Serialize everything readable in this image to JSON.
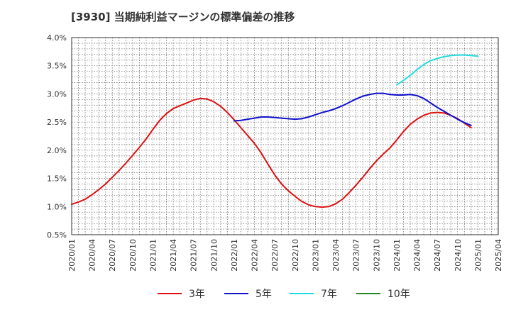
{
  "chart_data": {
    "type": "line",
    "title": "[3930]  当期純利益マージンの標準偏差の推移",
    "xlabel": "",
    "ylabel": "",
    "ylim": [
      0.5,
      4.0
    ],
    "y_ticks": [
      "0.5%",
      "1.0%",
      "1.5%",
      "2.0%",
      "2.5%",
      "3.0%",
      "3.5%",
      "4.0%"
    ],
    "x_ticks": [
      "2020/01",
      "2020/04",
      "2020/07",
      "2020/10",
      "2021/01",
      "2021/04",
      "2021/07",
      "2021/10",
      "2022/01",
      "2022/04",
      "2022/07",
      "2022/10",
      "2023/01",
      "2023/04",
      "2023/07",
      "2023/10",
      "2024/01",
      "2024/04",
      "2024/07",
      "2024/10",
      "2025/01",
      "2025/04"
    ],
    "grid": true,
    "legend_position": "bottom",
    "series": [
      {
        "name": "3年",
        "color": "#dd1111",
        "points": [
          [
            "2020/01",
            1.04
          ],
          [
            "2020/02",
            1.08
          ],
          [
            "2020/03",
            1.13
          ],
          [
            "2020/04",
            1.21
          ],
          [
            "2020/05",
            1.3
          ],
          [
            "2020/06",
            1.4
          ],
          [
            "2020/07",
            1.52
          ],
          [
            "2020/08",
            1.64
          ],
          [
            "2020/09",
            1.77
          ],
          [
            "2020/10",
            1.91
          ],
          [
            "2020/11",
            2.05
          ],
          [
            "2020/12",
            2.2
          ],
          [
            "2021/01",
            2.37
          ],
          [
            "2021/02",
            2.53
          ],
          [
            "2021/03",
            2.65
          ],
          [
            "2021/04",
            2.74
          ],
          [
            "2021/05",
            2.79
          ],
          [
            "2021/06",
            2.84
          ],
          [
            "2021/07",
            2.89
          ],
          [
            "2021/08",
            2.92
          ],
          [
            "2021/09",
            2.91
          ],
          [
            "2021/10",
            2.86
          ],
          [
            "2021/11",
            2.78
          ],
          [
            "2021/12",
            2.67
          ],
          [
            "2022/01",
            2.54
          ],
          [
            "2022/02",
            2.4
          ],
          [
            "2022/03",
            2.26
          ],
          [
            "2022/04",
            2.12
          ],
          [
            "2022/05",
            1.95
          ],
          [
            "2022/06",
            1.75
          ],
          [
            "2022/07",
            1.56
          ],
          [
            "2022/08",
            1.4
          ],
          [
            "2022/09",
            1.28
          ],
          [
            "2022/10",
            1.18
          ],
          [
            "2022/11",
            1.09
          ],
          [
            "2022/12",
            1.03
          ],
          [
            "2023/01",
            1.0
          ],
          [
            "2023/02",
            0.99
          ],
          [
            "2023/03",
            1.0
          ],
          [
            "2023/04",
            1.05
          ],
          [
            "2023/05",
            1.13
          ],
          [
            "2023/06",
            1.25
          ],
          [
            "2023/07",
            1.38
          ],
          [
            "2023/08",
            1.52
          ],
          [
            "2023/09",
            1.67
          ],
          [
            "2023/10",
            1.81
          ],
          [
            "2023/11",
            1.93
          ],
          [
            "2023/12",
            2.04
          ],
          [
            "2024/01",
            2.18
          ],
          [
            "2024/02",
            2.33
          ],
          [
            "2024/03",
            2.46
          ],
          [
            "2024/04",
            2.55
          ],
          [
            "2024/05",
            2.62
          ],
          [
            "2024/06",
            2.66
          ],
          [
            "2024/07",
            2.67
          ],
          [
            "2024/08",
            2.66
          ],
          [
            "2024/09",
            2.62
          ],
          [
            "2024/10",
            2.56
          ],
          [
            "2024/11",
            2.48
          ],
          [
            "2024/12",
            2.4
          ]
        ]
      },
      {
        "name": "5年",
        "color": "#1111cc",
        "points": [
          [
            "2022/01",
            2.52
          ],
          [
            "2022/02",
            2.53
          ],
          [
            "2022/03",
            2.55
          ],
          [
            "2022/04",
            2.57
          ],
          [
            "2022/05",
            2.59
          ],
          [
            "2022/06",
            2.59
          ],
          [
            "2022/07",
            2.58
          ],
          [
            "2022/08",
            2.57
          ],
          [
            "2022/09",
            2.56
          ],
          [
            "2022/10",
            2.55
          ],
          [
            "2022/11",
            2.56
          ],
          [
            "2022/12",
            2.59
          ],
          [
            "2023/01",
            2.63
          ],
          [
            "2023/02",
            2.67
          ],
          [
            "2023/03",
            2.7
          ],
          [
            "2023/04",
            2.74
          ],
          [
            "2023/05",
            2.79
          ],
          [
            "2023/06",
            2.85
          ],
          [
            "2023/07",
            2.91
          ],
          [
            "2023/08",
            2.96
          ],
          [
            "2023/09",
            2.99
          ],
          [
            "2023/10",
            3.01
          ],
          [
            "2023/11",
            3.01
          ],
          [
            "2023/12",
            2.99
          ],
          [
            "2024/01",
            2.98
          ],
          [
            "2024/02",
            2.98
          ],
          [
            "2024/03",
            2.99
          ],
          [
            "2024/04",
            2.97
          ],
          [
            "2024/05",
            2.92
          ],
          [
            "2024/06",
            2.84
          ],
          [
            "2024/07",
            2.76
          ],
          [
            "2024/08",
            2.69
          ],
          [
            "2024/09",
            2.62
          ],
          [
            "2024/10",
            2.55
          ],
          [
            "2024/11",
            2.49
          ],
          [
            "2024/12",
            2.44
          ]
        ]
      },
      {
        "name": "7年",
        "color": "#22dddd",
        "points": [
          [
            "2024/01",
            3.16
          ],
          [
            "2024/02",
            3.24
          ],
          [
            "2024/03",
            3.33
          ],
          [
            "2024/04",
            3.43
          ],
          [
            "2024/05",
            3.52
          ],
          [
            "2024/06",
            3.59
          ],
          [
            "2024/07",
            3.63
          ],
          [
            "2024/08",
            3.66
          ],
          [
            "2024/09",
            3.68
          ],
          [
            "2024/10",
            3.69
          ],
          [
            "2024/11",
            3.69
          ],
          [
            "2024/12",
            3.68
          ],
          [
            "2025/01",
            3.67
          ]
        ]
      },
      {
        "name": "10年",
        "color": "#228822",
        "points": []
      }
    ]
  }
}
